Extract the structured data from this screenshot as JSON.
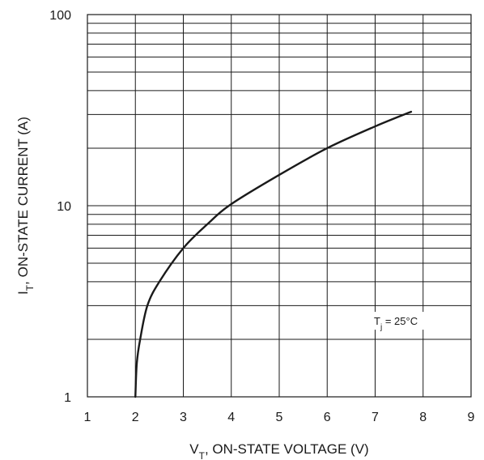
{
  "chart_data": {
    "type": "line",
    "title": "",
    "xlabel": {
      "main": "V",
      "sub": "T",
      "rest": ", ON-STATE VOLTAGE (V)"
    },
    "ylabel": {
      "main": "I",
      "sub": "T",
      "rest": ", ON-STATE CURRENT (A)"
    },
    "xlim": [
      1,
      9
    ],
    "ylim": [
      1,
      100
    ],
    "y_scale": "log",
    "x_ticks": [
      "1",
      "2",
      "3",
      "4",
      "5",
      "6",
      "7",
      "8",
      "9"
    ],
    "y_ticks": [
      {
        "value": 1,
        "label": "1"
      },
      {
        "value": 10,
        "label": "10"
      },
      {
        "value": 100,
        "label": "100"
      }
    ],
    "grid": true,
    "annotation": {
      "main": "T",
      "sub": "j",
      "rest": " = 25°C",
      "x": 7.6,
      "y": 2.5
    },
    "series": [
      {
        "x": [
          2.0,
          2.03,
          2.1,
          2.25,
          2.5,
          3.0,
          3.5,
          4.0,
          5.0,
          6.0,
          7.0,
          7.75
        ],
        "y": [
          1.0,
          1.5,
          2.0,
          3.0,
          4.0,
          6.0,
          8.0,
          10.2,
          14.5,
          20.0,
          26.0,
          31.0
        ]
      }
    ]
  }
}
